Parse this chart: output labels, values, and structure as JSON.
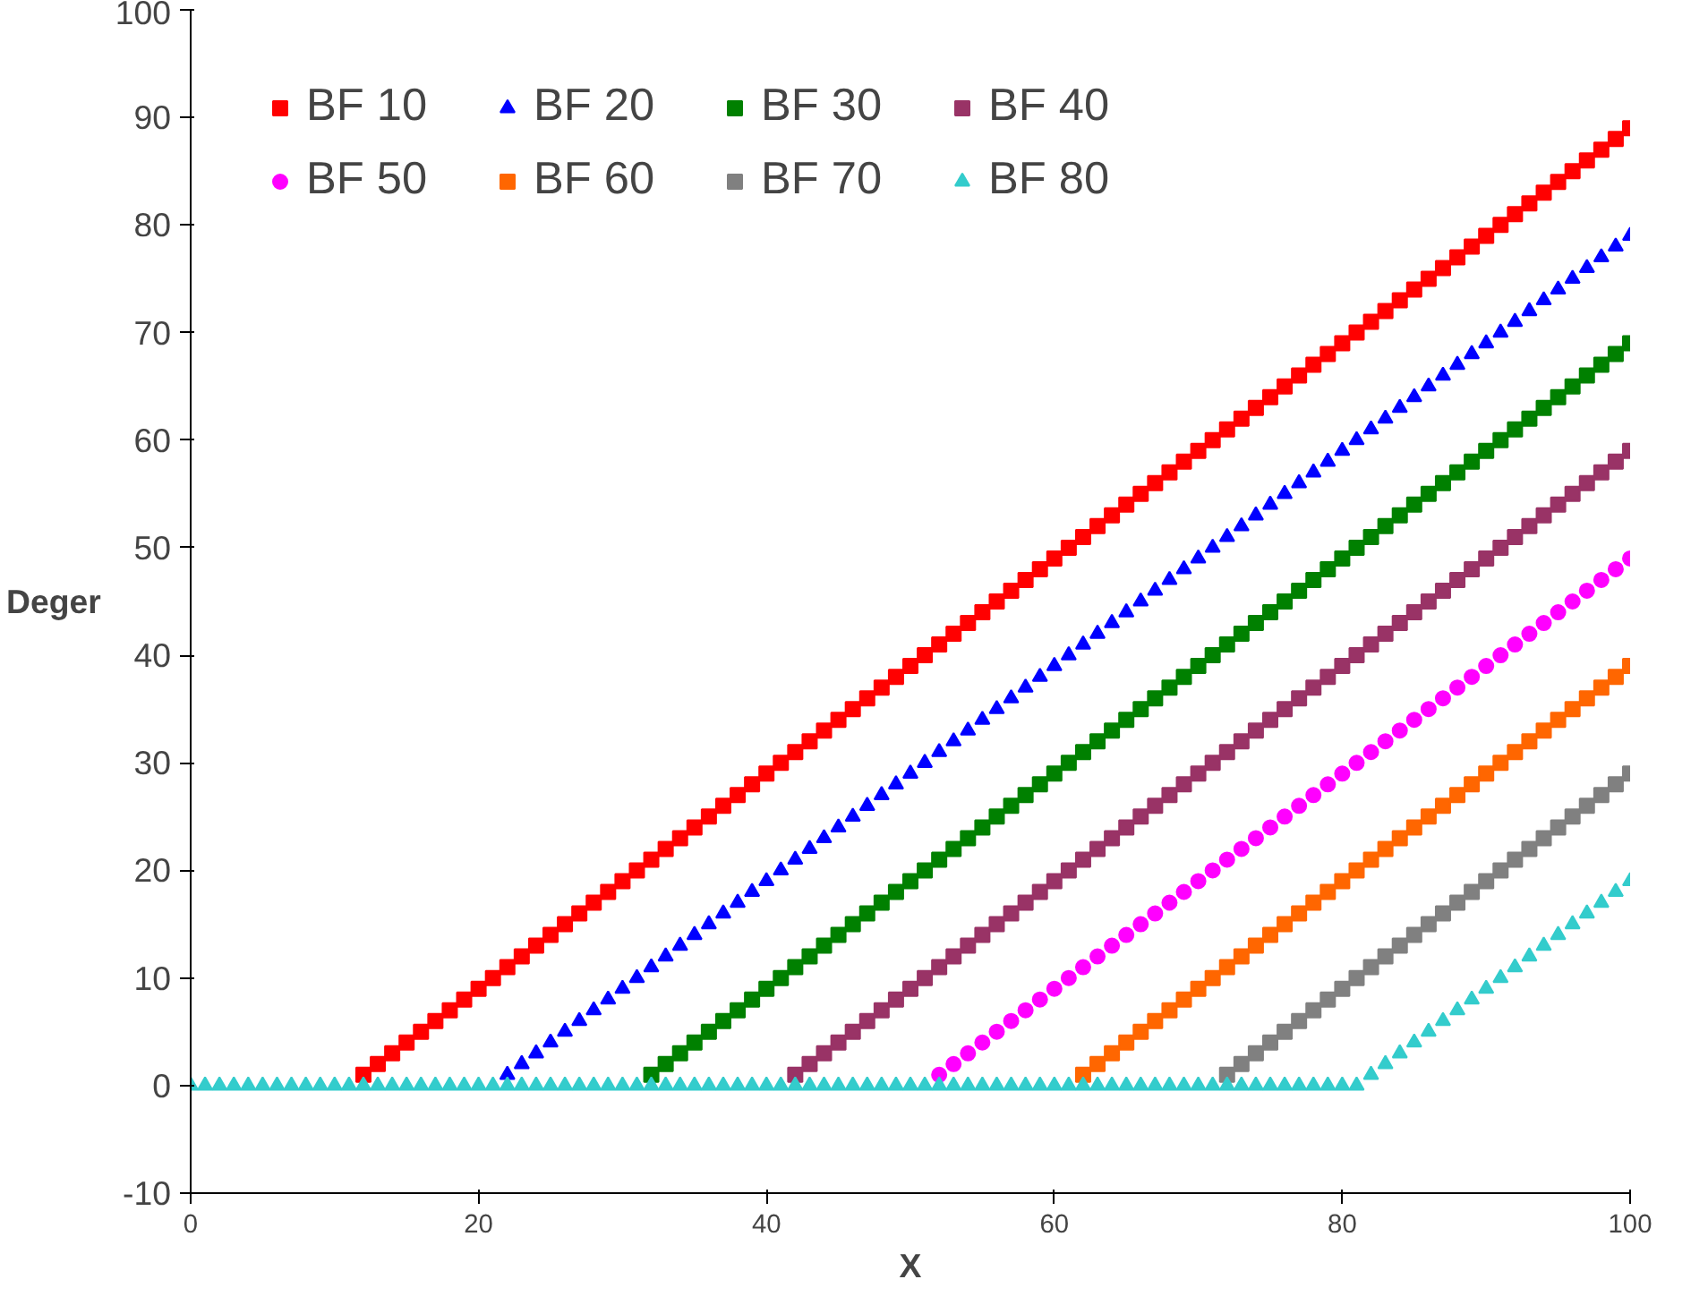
{
  "chart_data": {
    "type": "scatter",
    "xlabel": "X",
    "ylabel": "Deger",
    "xlim": [
      0,
      100
    ],
    "ylim": [
      -10,
      100
    ],
    "xticks": [
      0,
      20,
      40,
      60,
      80,
      100
    ],
    "yticks": [
      -10,
      0,
      10,
      20,
      30,
      40,
      50,
      60,
      70,
      80,
      90,
      100
    ],
    "grid": false,
    "legend": "top left",
    "x": [
      0,
      1,
      2,
      3,
      4,
      5,
      6,
      7,
      8,
      9,
      10,
      11,
      12,
      13,
      14,
      15,
      16,
      17,
      18,
      19,
      20,
      21,
      22,
      23,
      24,
      25,
      26,
      27,
      28,
      29,
      30,
      31,
      32,
      33,
      34,
      35,
      36,
      37,
      38,
      39,
      40,
      41,
      42,
      43,
      44,
      45,
      46,
      47,
      48,
      49,
      50,
      51,
      52,
      53,
      54,
      55,
      56,
      57,
      58,
      59,
      60,
      61,
      62,
      63,
      64,
      65,
      66,
      67,
      68,
      69,
      70,
      71,
      72,
      73,
      74,
      75,
      76,
      77,
      78,
      79,
      80,
      81,
      82,
      83,
      84,
      85,
      86,
      87,
      88,
      89,
      90,
      91,
      92,
      93,
      94,
      95,
      96,
      97,
      98,
      99,
      100
    ],
    "series": [
      {
        "name": "BF 10",
        "color": "#ff0000",
        "marker": "square",
        "values": [
          null,
          null,
          null,
          null,
          null,
          null,
          null,
          null,
          null,
          null,
          null,
          null,
          1,
          2,
          3,
          4,
          5,
          6,
          7,
          8,
          9,
          10,
          11,
          12,
          13,
          14,
          15,
          16,
          17,
          18,
          19,
          20,
          21,
          22,
          23,
          24,
          25,
          26,
          27,
          28,
          29,
          30,
          31,
          32,
          33,
          34,
          35,
          36,
          37,
          38,
          39,
          40,
          41,
          42,
          43,
          44,
          45,
          46,
          47,
          48,
          49,
          50,
          51,
          52,
          53,
          54,
          55,
          56,
          57,
          58,
          59,
          60,
          61,
          62,
          63,
          64,
          65,
          66,
          67,
          68,
          69,
          70,
          71,
          72,
          73,
          74,
          75,
          76,
          77,
          78,
          79,
          80,
          81,
          82,
          83,
          84,
          85,
          86,
          87,
          88,
          89
        ]
      },
      {
        "name": "BF 20",
        "color": "#0000ff",
        "marker": "triangle",
        "values": [
          null,
          null,
          null,
          null,
          null,
          null,
          null,
          null,
          null,
          null,
          null,
          null,
          null,
          null,
          null,
          null,
          null,
          null,
          null,
          null,
          null,
          null,
          1,
          2,
          3,
          4,
          5,
          6,
          7,
          8,
          9,
          10,
          11,
          12,
          13,
          14,
          15,
          16,
          17,
          18,
          19,
          20,
          21,
          22,
          23,
          24,
          25,
          26,
          27,
          28,
          29,
          30,
          31,
          32,
          33,
          34,
          35,
          36,
          37,
          38,
          39,
          40,
          41,
          42,
          43,
          44,
          45,
          46,
          47,
          48,
          49,
          50,
          51,
          52,
          53,
          54,
          55,
          56,
          57,
          58,
          59,
          60,
          61,
          62,
          63,
          64,
          65,
          66,
          67,
          68,
          69,
          70,
          71,
          72,
          73,
          74,
          75,
          76,
          77,
          78,
          79
        ]
      },
      {
        "name": "BF 30",
        "color": "#008000",
        "marker": "square",
        "values": [
          null,
          null,
          null,
          null,
          null,
          null,
          null,
          null,
          null,
          null,
          null,
          null,
          null,
          null,
          null,
          null,
          null,
          null,
          null,
          null,
          null,
          null,
          null,
          null,
          null,
          null,
          null,
          null,
          null,
          null,
          null,
          null,
          1,
          2,
          3,
          4,
          5,
          6,
          7,
          8,
          9,
          10,
          11,
          12,
          13,
          14,
          15,
          16,
          17,
          18,
          19,
          20,
          21,
          22,
          23,
          24,
          25,
          26,
          27,
          28,
          29,
          30,
          31,
          32,
          33,
          34,
          35,
          36,
          37,
          38,
          39,
          40,
          41,
          42,
          43,
          44,
          45,
          46,
          47,
          48,
          49,
          50,
          51,
          52,
          53,
          54,
          55,
          56,
          57,
          58,
          59,
          60,
          61,
          62,
          63,
          64,
          65,
          66,
          67,
          68,
          69
        ]
      },
      {
        "name": "BF 40",
        "color": "#993366",
        "marker": "square",
        "values": [
          null,
          null,
          null,
          null,
          null,
          null,
          null,
          null,
          null,
          null,
          null,
          null,
          null,
          null,
          null,
          null,
          null,
          null,
          null,
          null,
          null,
          null,
          null,
          null,
          null,
          null,
          null,
          null,
          null,
          null,
          null,
          null,
          null,
          null,
          null,
          null,
          null,
          null,
          null,
          null,
          null,
          null,
          1,
          2,
          3,
          4,
          5,
          6,
          7,
          8,
          9,
          10,
          11,
          12,
          13,
          14,
          15,
          16,
          17,
          18,
          19,
          20,
          21,
          22,
          23,
          24,
          25,
          26,
          27,
          28,
          29,
          30,
          31,
          32,
          33,
          34,
          35,
          36,
          37,
          38,
          39,
          40,
          41,
          42,
          43,
          44,
          45,
          46,
          47,
          48,
          49,
          50,
          51,
          52,
          53,
          54,
          55,
          56,
          57,
          58,
          59
        ]
      },
      {
        "name": "BF 50",
        "color": "#ff00ff",
        "marker": "circle",
        "values": [
          null,
          null,
          null,
          null,
          null,
          null,
          null,
          null,
          null,
          null,
          null,
          null,
          null,
          null,
          null,
          null,
          null,
          null,
          null,
          null,
          null,
          null,
          null,
          null,
          null,
          null,
          null,
          null,
          null,
          null,
          null,
          null,
          null,
          null,
          null,
          null,
          null,
          null,
          null,
          null,
          null,
          null,
          null,
          null,
          null,
          null,
          null,
          null,
          null,
          null,
          null,
          null,
          1,
          2,
          3,
          4,
          5,
          6,
          7,
          8,
          9,
          10,
          11,
          12,
          13,
          14,
          15,
          16,
          17,
          18,
          19,
          20,
          21,
          22,
          23,
          24,
          25,
          26,
          27,
          28,
          29,
          30,
          31,
          32,
          33,
          34,
          35,
          36,
          37,
          38,
          39,
          40,
          41,
          42,
          43,
          44,
          45,
          46,
          47,
          48,
          49
        ]
      },
      {
        "name": "BF 60",
        "color": "#ff6600",
        "marker": "square",
        "values": [
          null,
          null,
          null,
          null,
          null,
          null,
          null,
          null,
          null,
          null,
          null,
          null,
          null,
          null,
          null,
          null,
          null,
          null,
          null,
          null,
          null,
          null,
          null,
          null,
          null,
          null,
          null,
          null,
          null,
          null,
          null,
          null,
          null,
          null,
          null,
          null,
          null,
          null,
          null,
          null,
          null,
          null,
          null,
          null,
          null,
          null,
          null,
          null,
          null,
          null,
          null,
          null,
          null,
          null,
          null,
          null,
          null,
          null,
          null,
          null,
          null,
          null,
          1,
          2,
          3,
          4,
          5,
          6,
          7,
          8,
          9,
          10,
          11,
          12,
          13,
          14,
          15,
          16,
          17,
          18,
          19,
          20,
          21,
          22,
          23,
          24,
          25,
          26,
          27,
          28,
          29,
          30,
          31,
          32,
          33,
          34,
          35,
          36,
          37,
          38,
          39
        ]
      },
      {
        "name": "BF 70",
        "color": "#808080",
        "marker": "square",
        "values": [
          null,
          null,
          null,
          null,
          null,
          null,
          null,
          null,
          null,
          null,
          null,
          null,
          null,
          null,
          null,
          null,
          null,
          null,
          null,
          null,
          null,
          null,
          null,
          null,
          null,
          null,
          null,
          null,
          null,
          null,
          null,
          null,
          null,
          null,
          null,
          null,
          null,
          null,
          null,
          null,
          null,
          null,
          null,
          null,
          null,
          null,
          null,
          null,
          null,
          null,
          null,
          null,
          null,
          null,
          null,
          null,
          null,
          null,
          null,
          null,
          null,
          null,
          null,
          null,
          null,
          null,
          null,
          null,
          null,
          null,
          null,
          null,
          1,
          2,
          3,
          4,
          5,
          6,
          7,
          8,
          9,
          10,
          11,
          12,
          13,
          14,
          15,
          16,
          17,
          18,
          19,
          20,
          21,
          22,
          23,
          24,
          25,
          26,
          27,
          28,
          29
        ]
      },
      {
        "name": "BF 80",
        "color": "#33cccc",
        "marker": "triangle",
        "values": [
          0,
          0,
          0,
          0,
          0,
          0,
          0,
          0,
          0,
          0,
          0,
          0,
          0,
          0,
          0,
          0,
          0,
          0,
          0,
          0,
          0,
          0,
          0,
          0,
          0,
          0,
          0,
          0,
          0,
          0,
          0,
          0,
          0,
          0,
          0,
          0,
          0,
          0,
          0,
          0,
          0,
          0,
          0,
          0,
          0,
          0,
          0,
          0,
          0,
          0,
          0,
          0,
          0,
          0,
          0,
          0,
          0,
          0,
          0,
          0,
          0,
          0,
          0,
          0,
          0,
          0,
          0,
          0,
          0,
          0,
          0,
          0,
          0,
          0,
          0,
          0,
          0,
          0,
          0,
          0,
          0,
          0,
          1,
          2,
          3,
          4,
          5,
          6,
          7,
          8,
          9,
          10,
          11,
          12,
          13,
          14,
          15,
          16,
          17,
          18,
          19
        ]
      }
    ]
  }
}
